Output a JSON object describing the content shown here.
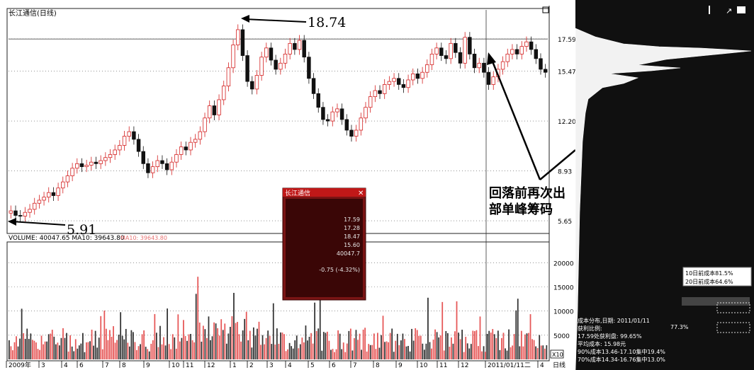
{
  "window": {
    "title": "长江通信(日线)",
    "corner_icon": "window-restore-icon"
  },
  "chart_data": [
    {
      "type": "candlestick",
      "title": "长江通信(日线)",
      "ylim": [
        5.0,
        19.5
      ],
      "y_ticks": [
        {
          "value": 17.59,
          "label": "17.59"
        },
        {
          "value": 15.47,
          "label": "15.47"
        },
        {
          "value": 12.2,
          "label": "12.20"
        },
        {
          "value": 8.93,
          "label": "8.93"
        },
        {
          "value": 5.65,
          "label": "5.65"
        }
      ],
      "reference_line": 17.59,
      "x_labels": [
        "2009年",
        "3",
        "4",
        "6",
        "7",
        "8",
        "9",
        "10",
        "11",
        "12",
        "1",
        "2",
        "3",
        "4",
        "5",
        "6",
        "7",
        "8",
        "9",
        "10",
        "11",
        "12",
        "2011/01/11二",
        "4"
      ],
      "timeframe_label": "日线",
      "series_close": [
        6.3,
        6.0,
        5.95,
        6.2,
        6.4,
        6.8,
        7.0,
        7.2,
        7.5,
        7.3,
        7.8,
        8.2,
        8.6,
        9.1,
        9.4,
        9.2,
        9.3,
        9.5,
        9.4,
        9.6,
        9.8,
        10.0,
        10.3,
        10.6,
        11.2,
        11.5,
        11.0,
        10.2,
        9.4,
        8.8,
        9.2,
        9.6,
        9.4,
        9.0,
        9.5,
        10.0,
        10.5,
        10.3,
        10.8,
        11.0,
        11.5,
        12.4,
        13.2,
        12.6,
        13.6,
        14.5,
        15.7,
        17.2,
        18.2,
        16.5,
        14.8,
        14.3,
        15.2,
        16.4,
        17.0,
        16.2,
        15.6,
        16.0,
        16.6,
        17.3,
        16.9,
        17.5,
        16.4,
        15.0,
        14.0,
        13.1,
        12.3,
        12.2,
        12.8,
        13.0,
        12.3,
        11.6,
        11.2,
        11.6,
        12.4,
        13.1,
        13.8,
        14.2,
        14.0,
        14.6,
        14.8,
        15.0,
        14.6,
        14.4,
        14.9,
        15.3,
        15.0,
        15.4,
        15.9,
        16.6,
        17.0,
        16.5,
        16.3,
        17.3,
        16.7,
        16.0,
        17.7,
        16.6,
        15.7,
        16.0,
        15.4,
        14.6,
        15.1,
        15.6,
        16.1,
        16.6,
        16.9,
        16.6,
        17.1,
        17.4,
        16.9,
        16.3,
        15.6,
        15.4
      ],
      "annotations": {
        "high": {
          "value": 18.74,
          "label": "18.74"
        },
        "low": {
          "value": 5.91,
          "label": "5.91"
        },
        "note_line1": "回落前再次出",
        "note_line2": "部单峰筹码"
      }
    },
    {
      "type": "bar",
      "title": "VOLUME: 40047.65  MA10: 39643.80",
      "legend_extra": "MA10: 39643.80",
      "ylim": [
        0,
        24000
      ],
      "y_ticks": [
        {
          "value": 20000,
          "label": "20000"
        },
        {
          "value": 15000,
          "label": "15000"
        },
        {
          "value": 10000,
          "label": "10000"
        },
        {
          "value": 5000,
          "label": "5000"
        }
      ],
      "multiplier_label": "X10"
    }
  ],
  "popup": {
    "title": "长江通信",
    "close_icon": "close-icon",
    "values": [
      "17.59",
      "17.28",
      "18.47",
      "15.60",
      "40047.7"
    ],
    "change": "-0.75 (-4.32%)"
  },
  "chip_panel": {
    "cost_10": "10日前成本81.5%",
    "cost_20": "20日前成本64.6%",
    "info_lines": [
      "成本分布,日期: 2011/01/11",
      "获利比例:",
      "17.59处获利盘: 99.65%",
      "平均成本: 15.98元",
      "90%成本13.46-17.10集中19.4%",
      "70%成本14.34-16.76集中13.0%"
    ],
    "profit_ratio": "77.3%"
  }
}
